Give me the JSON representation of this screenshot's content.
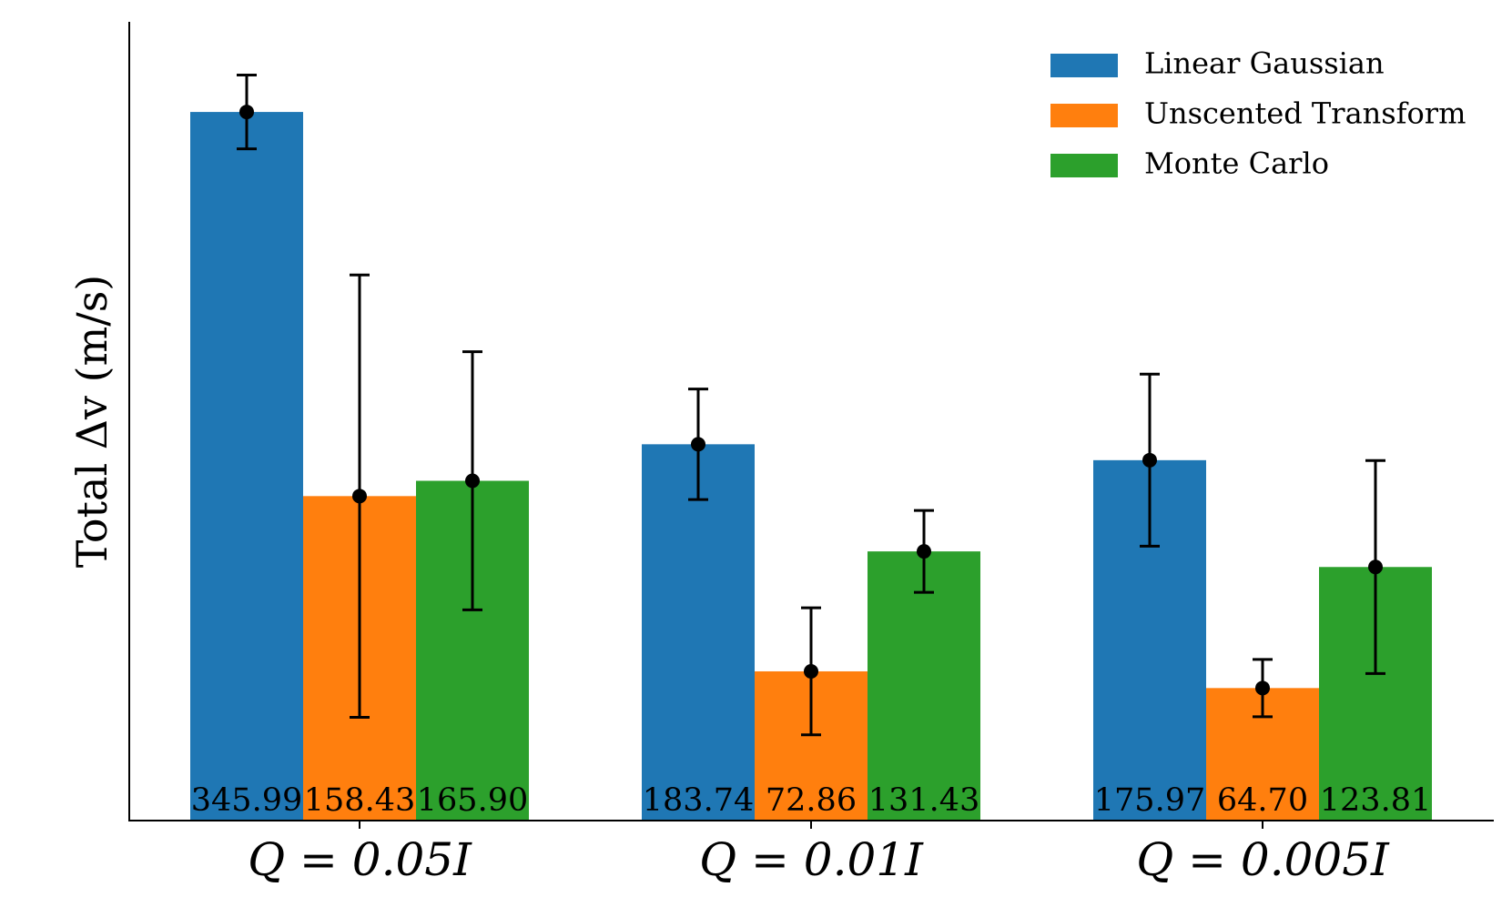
{
  "chart_data": {
    "type": "bar",
    "title": "",
    "xlabel": "",
    "ylabel": "Total Δv (m/s)",
    "ylim": [
      0,
      390
    ],
    "y_ticks_shown": false,
    "grid": false,
    "legend_position": "top-right",
    "categories": [
      "Q = 0.05I",
      "Q = 0.01I",
      "Q = 0.005I"
    ],
    "series": [
      {
        "name": "Linear Gaussian",
        "color": "#1f77b4",
        "values": [
          345.99,
          183.74,
          175.97
        ],
        "value_labels": [
          "345.99",
          "183.74",
          "175.97"
        ],
        "error": [
          18,
          27,
          42
        ]
      },
      {
        "name": "Unscented Transform",
        "color": "#ff7f0e",
        "values": [
          158.43,
          72.86,
          64.7
        ],
        "value_labels": [
          "158.43",
          "72.86",
          "64.70"
        ],
        "error": [
          108,
          31,
          14
        ]
      },
      {
        "name": "Monte Carlo",
        "color": "#2ca02c",
        "values": [
          165.9,
          131.43,
          123.81
        ],
        "value_labels": [
          "165.90",
          "131.43",
          "123.81"
        ],
        "error": [
          63,
          20,
          52
        ]
      }
    ]
  }
}
